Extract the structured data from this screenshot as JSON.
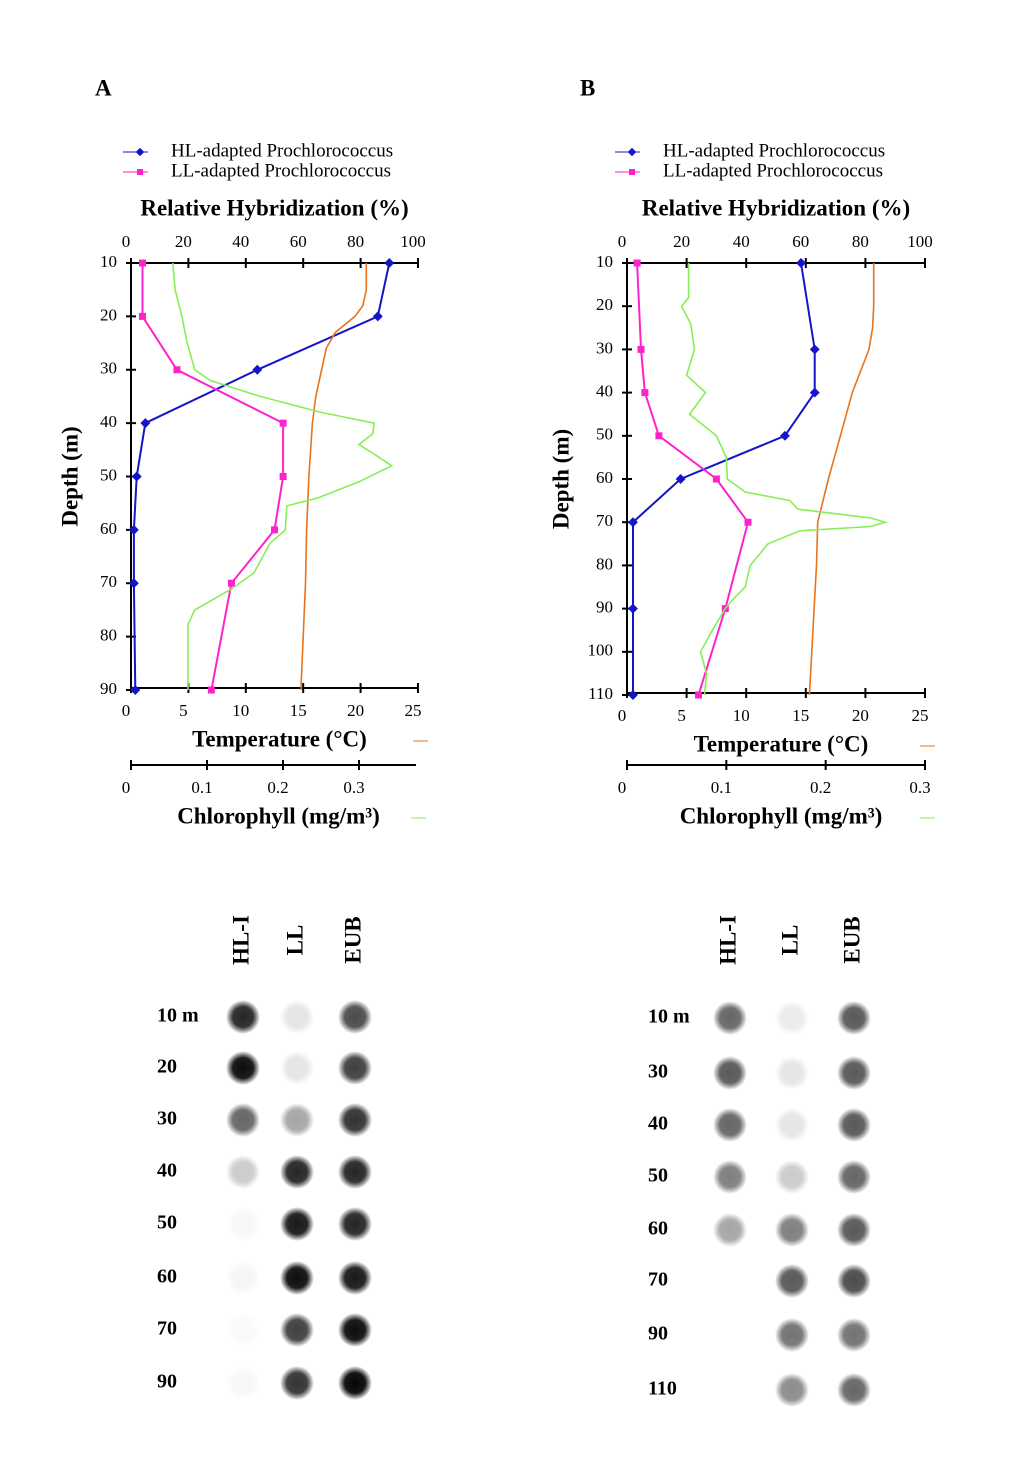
{
  "chart_data": [
    {
      "type": "line",
      "panel": "A",
      "xlabel": "Relative Hybridization (%)",
      "xlim": [
        0,
        100
      ],
      "xticks": [
        0,
        20,
        40,
        60,
        80,
        100
      ],
      "ylabel": "Depth (m)",
      "ylim": [
        10,
        90
      ],
      "yticks": [
        10,
        20,
        30,
        40,
        50,
        60,
        70,
        80,
        90
      ],
      "x2label": "Temperature (°C)",
      "x2lim": [
        0,
        25
      ],
      "x2ticks": [
        0,
        5,
        10,
        15,
        20,
        25
      ],
      "x3label": "Chlorophyll (mg/m³)",
      "x3lim": [
        0,
        0.375
      ],
      "x3ticks": [
        0,
        0.1,
        0.2,
        0.3
      ],
      "series": [
        {
          "name": "HL-adapted Prochlorococcus",
          "color": "#1414c8",
          "axis": "x",
          "depth": [
            10,
            20,
            30,
            40,
            50,
            60,
            70,
            90
          ],
          "values": [
            90,
            86,
            44,
            5,
            2,
            1,
            1,
            1.5
          ]
        },
        {
          "name": "LL-adapted Prochlorococcus",
          "color": "#ff22cc",
          "axis": "x",
          "depth": [
            10,
            20,
            30,
            40,
            50,
            60,
            70,
            90
          ],
          "values": [
            4,
            4,
            16,
            53,
            53,
            50,
            35,
            28
          ]
        },
        {
          "color": "#e8731a",
          "axis": "x2",
          "depth": [
            10,
            15,
            18,
            20,
            23,
            26,
            30,
            35,
            40,
            50,
            60,
            70,
            80,
            90
          ],
          "values": [
            20.5,
            20.5,
            20.2,
            19.5,
            17.8,
            17,
            16.6,
            16.1,
            15.8,
            15.5,
            15.3,
            15.2,
            15,
            14.8
          ]
        },
        {
          "color": "#88ee55",
          "axis": "x3",
          "depth": [
            10,
            15,
            20,
            25,
            30,
            32,
            35,
            38,
            40,
            42,
            44,
            46,
            48,
            51,
            54,
            55.5,
            60,
            62.5,
            68,
            71,
            75,
            77.7,
            90
          ],
          "values": [
            0.055,
            0.058,
            0.067,
            0.074,
            0.084,
            0.104,
            0.17,
            0.25,
            0.32,
            0.318,
            0.3,
            0.322,
            0.343,
            0.3,
            0.246,
            0.205,
            0.203,
            0.183,
            0.162,
            0.133,
            0.084,
            0.075,
            0.075
          ]
        }
      ]
    },
    {
      "type": "line",
      "panel": "B",
      "xlabel": "Relative Hybridization (%)",
      "xlim": [
        0,
        100
      ],
      "xticks": [
        0,
        20,
        40,
        60,
        80,
        100
      ],
      "ylabel": "Depth (m)",
      "ylim": [
        10,
        110
      ],
      "yticks": [
        10,
        20,
        30,
        40,
        50,
        60,
        70,
        80,
        90,
        100,
        110
      ],
      "x2label": "Temperature (°C)",
      "x2lim": [
        0,
        25
      ],
      "x2ticks": [
        0,
        5,
        10,
        15,
        20,
        25
      ],
      "x3label": "Chlorophyll (mg/m³)",
      "x3lim": [
        0,
        0.3
      ],
      "x3ticks": [
        0,
        0.1,
        0.2,
        0.3
      ],
      "series": [
        {
          "name": "HL-adapted Prochlorococcus",
          "color": "#1414c8",
          "axis": "x",
          "depth": [
            10,
            30,
            40,
            50,
            60,
            70,
            90,
            110
          ],
          "values": [
            58.4,
            63,
            63,
            53,
            18,
            2,
            2,
            2
          ]
        },
        {
          "name": "LL-adapted Prochlorococcus",
          "color": "#ff22cc",
          "axis": "x",
          "depth": [
            10,
            30,
            40,
            50,
            60,
            70,
            90,
            110
          ],
          "values": [
            3.4,
            4.7,
            6,
            10.7,
            30,
            40.6,
            33,
            24
          ]
        },
        {
          "color": "#e8731a",
          "axis": "x2",
          "depth": [
            10,
            20,
            25,
            30,
            40,
            50,
            60,
            70,
            80,
            90,
            100,
            110
          ],
          "values": [
            20.7,
            20.7,
            20.6,
            20.3,
            18.9,
            17.9,
            16.9,
            16,
            15.9,
            15.7,
            15.5,
            15.3
          ]
        },
        {
          "color": "#88ee55",
          "axis": "x3",
          "depth": [
            10,
            18,
            20,
            24,
            30,
            36,
            40,
            45,
            50,
            55,
            60,
            63,
            65,
            67,
            69,
            70,
            71,
            72,
            75,
            80,
            85,
            88,
            90,
            95,
            100,
            105,
            110
          ],
          "values": [
            0.062,
            0.062,
            0.055,
            0.064,
            0.068,
            0.06,
            0.079,
            0.063,
            0.09,
            0.1,
            0.101,
            0.119,
            0.164,
            0.172,
            0.245,
            0.26,
            0.245,
            0.174,
            0.142,
            0.124,
            0.119,
            0.106,
            0.099,
            0.086,
            0.074,
            0.08,
            0.078
          ]
        }
      ]
    }
  ],
  "blots": [
    {
      "columns": [
        "HL-I",
        "LL",
        "EUB"
      ],
      "rows": [
        "10 m",
        "20",
        "30",
        "40",
        "50",
        "60",
        "70",
        "90"
      ]
    },
    {
      "columns": [
        "HL-I",
        "LL",
        "EUB"
      ],
      "rows": [
        "10 m",
        "30",
        "40",
        "50",
        "60",
        "70",
        "90",
        "110"
      ]
    }
  ]
}
